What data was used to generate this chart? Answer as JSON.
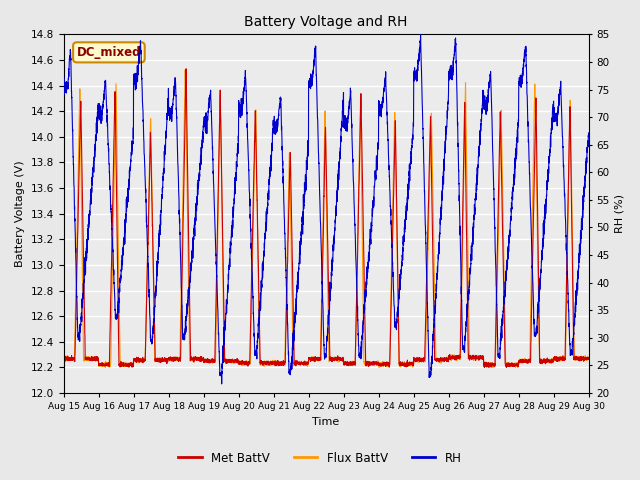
{
  "title": "Battery Voltage and RH",
  "xlabel": "Time",
  "ylabel_left": "Battery Voltage (V)",
  "ylabel_right": "RH (%)",
  "annotation": "DC_mixed",
  "ylim_left": [
    12.0,
    14.8
  ],
  "ylim_right": [
    20,
    85
  ],
  "yticks_left": [
    12.0,
    12.2,
    12.4,
    12.6,
    12.8,
    13.0,
    13.2,
    13.4,
    13.6,
    13.8,
    14.0,
    14.2,
    14.4,
    14.6,
    14.8
  ],
  "yticks_right": [
    20,
    25,
    30,
    35,
    40,
    45,
    50,
    55,
    60,
    65,
    70,
    75,
    80,
    85
  ],
  "xtick_labels": [
    "Aug 15",
    "Aug 16",
    "Aug 17",
    "Aug 18",
    "Aug 19",
    "Aug 20",
    "Aug 21",
    "Aug 22",
    "Aug 23",
    "Aug 24",
    "Aug 25",
    "Aug 26",
    "Aug 27",
    "Aug 28",
    "Aug 29",
    "Aug 30"
  ],
  "color_met": "#CC0000",
  "color_flux": "#FF9900",
  "color_rh": "#0000CC",
  "bg_color": "#E8E8E8",
  "plot_bg": "#EBEBEB",
  "legend_labels": [
    "Met BattV",
    "Flux BattV",
    "RH"
  ],
  "n_days": 15,
  "pts_per_day": 288,
  "figwidth": 6.4,
  "figheight": 4.8,
  "dpi": 100
}
